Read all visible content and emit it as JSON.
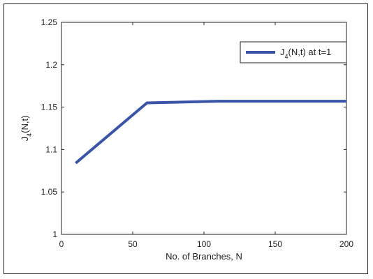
{
  "chart_data": {
    "type": "line",
    "title": "",
    "xlabel": "No. of Branches, N",
    "ylabel": "J_4(N,t)",
    "xlim": [
      0,
      200
    ],
    "ylim": [
      1,
      1.25
    ],
    "xticks": [
      "0",
      "50",
      "100",
      "150",
      "200"
    ],
    "yticks": [
      "1",
      "1.05",
      "1.1",
      "1.15",
      "1.2",
      "1.25"
    ],
    "grid": false,
    "legend_position": "top-right",
    "series": [
      {
        "name": "J_4(N,t) at t=1",
        "color": "#3a54a8",
        "x": [
          10,
          60,
          110,
          160,
          200
        ],
        "y": [
          1.084,
          1.155,
          1.157,
          1.157,
          1.157
        ]
      }
    ]
  }
}
